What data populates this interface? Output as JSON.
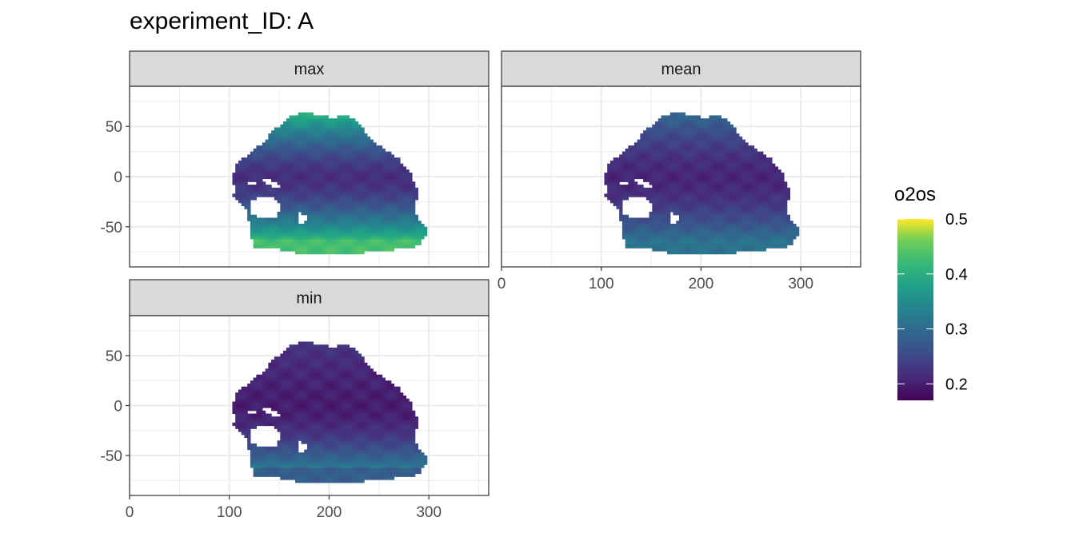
{
  "chart_data": {
    "type": "heatmap",
    "title": "experiment_ID: A",
    "xlabel": "",
    "ylabel": "",
    "xlim": [
      0,
      360
    ],
    "ylim": [
      -90,
      90
    ],
    "x_ticks": [
      0,
      100,
      200,
      300
    ],
    "y_ticks": [
      -50,
      0,
      50
    ],
    "grid": true,
    "facets": [
      {
        "label": "max",
        "surface": {
          "north": 0.42,
          "equator": 0.22,
          "south": 0.4,
          "southern_ocean_edge": 0.43
        }
      },
      {
        "label": "mean",
        "surface": {
          "north": 0.3,
          "equator": 0.21,
          "south": 0.3,
          "southern_ocean_edge": 0.31
        }
      },
      {
        "label": "min",
        "surface": {
          "north": 0.23,
          "equator": 0.2,
          "south": 0.31,
          "southern_ocean_edge": 0.28
        }
      }
    ],
    "legend": {
      "title": "o2os",
      "position": "right",
      "range": [
        0.17,
        0.5
      ],
      "ticks": [
        "0.2",
        "0.3",
        "0.4",
        "0.5"
      ],
      "colormap": "viridis"
    }
  }
}
